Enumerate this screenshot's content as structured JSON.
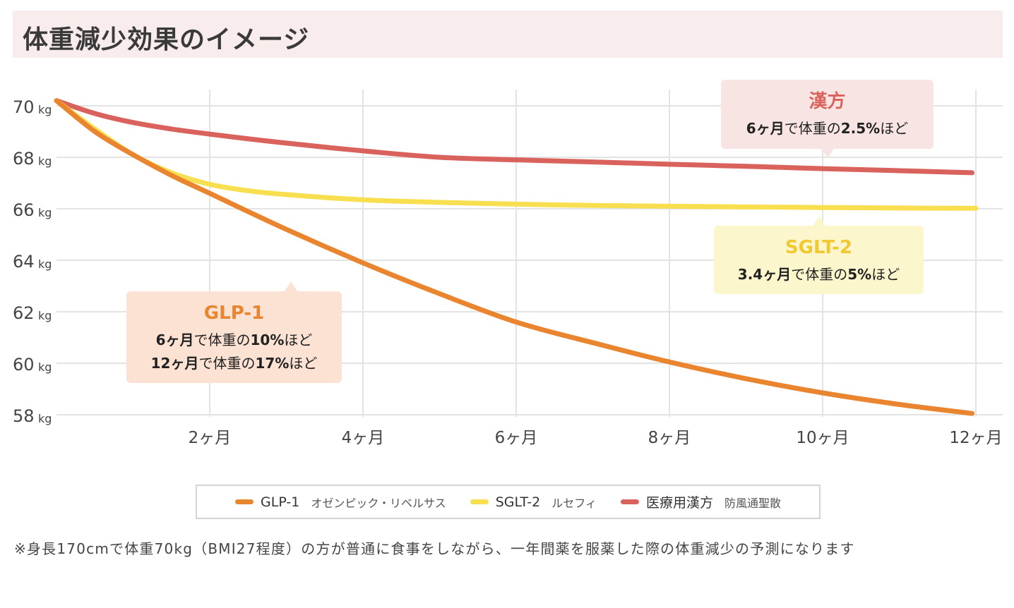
{
  "title": "体重減少効果のイメージ",
  "chart_data": {
    "type": "line",
    "x_ticks": [
      {
        "value": 2,
        "label": "2ヶ月"
      },
      {
        "value": 4,
        "label": "4ヶ月"
      },
      {
        "value": 6,
        "label": "6ヶ月"
      },
      {
        "value": 8,
        "label": "8ヶ月"
      },
      {
        "value": 10,
        "label": "10ヶ月"
      },
      {
        "value": 12,
        "label": "12ヶ月"
      }
    ],
    "y_ticks": [
      {
        "value": 70,
        "label": "70",
        "unit": "kg"
      },
      {
        "value": 68,
        "label": "68",
        "unit": "kg"
      },
      {
        "value": 66,
        "label": "66",
        "unit": "kg"
      },
      {
        "value": 64,
        "label": "64",
        "unit": "kg"
      },
      {
        "value": 62,
        "label": "62",
        "unit": "kg"
      },
      {
        "value": 60,
        "label": "60",
        "unit": "kg"
      },
      {
        "value": 58,
        "label": "58",
        "unit": "kg"
      }
    ],
    "xlim": [
      0.0,
      12.3
    ],
    "ylim": [
      57.9,
      70.5
    ],
    "grid": true,
    "series": [
      {
        "name": "医療用漢方",
        "color": "#d9625c",
        "x": [
          0.0,
          0.5,
          1.0,
          1.5,
          2.0,
          3.0,
          4.0,
          5.0,
          6.0,
          7.0,
          8.0,
          9.0,
          10.0,
          11.0,
          11.95
        ],
        "y": [
          70.2,
          69.7,
          69.35,
          69.1,
          68.9,
          68.55,
          68.25,
          68.0,
          67.9,
          67.82,
          67.73,
          67.65,
          67.56,
          67.48,
          67.4
        ]
      },
      {
        "name": "SGLT-2",
        "color": "#f7df4f",
        "x": [
          0.0,
          0.5,
          1.0,
          1.5,
          2.0,
          2.5,
          3.0,
          4.0,
          5.0,
          6.0,
          7.0,
          8.0,
          9.0,
          10.0,
          11.0,
          12.0
        ],
        "y": [
          70.2,
          69.1,
          68.1,
          67.4,
          66.95,
          66.7,
          66.55,
          66.35,
          66.25,
          66.18,
          66.13,
          66.1,
          66.07,
          66.05,
          66.03,
          66.02
        ]
      },
      {
        "name": "GLP-1",
        "color": "#e9852f",
        "x": [
          0.0,
          0.5,
          1.0,
          1.5,
          2.0,
          3.0,
          4.0,
          5.0,
          6.0,
          7.0,
          8.0,
          9.0,
          10.0,
          11.0,
          11.95
        ],
        "y": [
          70.2,
          69.0,
          68.1,
          67.3,
          66.6,
          65.2,
          63.9,
          62.7,
          61.6,
          60.8,
          60.05,
          59.4,
          58.85,
          58.4,
          58.05
        ]
      }
    ],
    "annotations": [
      {
        "id": "kampo",
        "title": "漢方",
        "lines": [
          [
            [
              "6ヶ月",
              true
            ],
            [
              "で体重の",
              false
            ],
            [
              "2.5%",
              true
            ],
            [
              "ほど",
              false
            ]
          ]
        ],
        "bg": "#f9e4e4",
        "title_color": "#d9625c",
        "pointer": "down"
      },
      {
        "id": "sglt2",
        "title": "SGLT-2",
        "lines": [
          [
            [
              "3.4ヶ月",
              true
            ],
            [
              "で体重の",
              false
            ],
            [
              "5%",
              true
            ],
            [
              "ほど",
              false
            ]
          ]
        ],
        "bg": "#fcf6cd",
        "title_color": "#f2c832",
        "pointer": "up"
      },
      {
        "id": "glp1",
        "title": "GLP-1",
        "lines": [
          [
            [
              "6ヶ月",
              true
            ],
            [
              "で体重の",
              false
            ],
            [
              "10%",
              true
            ],
            [
              "ほど",
              false
            ]
          ],
          [
            [
              "12ヶ月",
              true
            ],
            [
              "で体重の",
              false
            ],
            [
              "17%",
              true
            ],
            [
              "ほど",
              false
            ]
          ]
        ],
        "bg": "#fbe2d2",
        "title_color": "#e9852f",
        "pointer": "up"
      }
    ]
  },
  "legend": [
    {
      "name": "GLP-1",
      "sub": "オゼンピック・リベルサス",
      "color": "#e9852f"
    },
    {
      "name": "SGLT-2",
      "sub": "ルセフィ",
      "color": "#f7df4f"
    },
    {
      "name": "医療用漢方",
      "sub": "防風通聖散",
      "color": "#d9625c"
    }
  ],
  "note": "※身長170cmで体重70kg（BMI27程度）の方が普通に食事をしながら、一年間薬を服薬した際の体重減少の予測になります"
}
